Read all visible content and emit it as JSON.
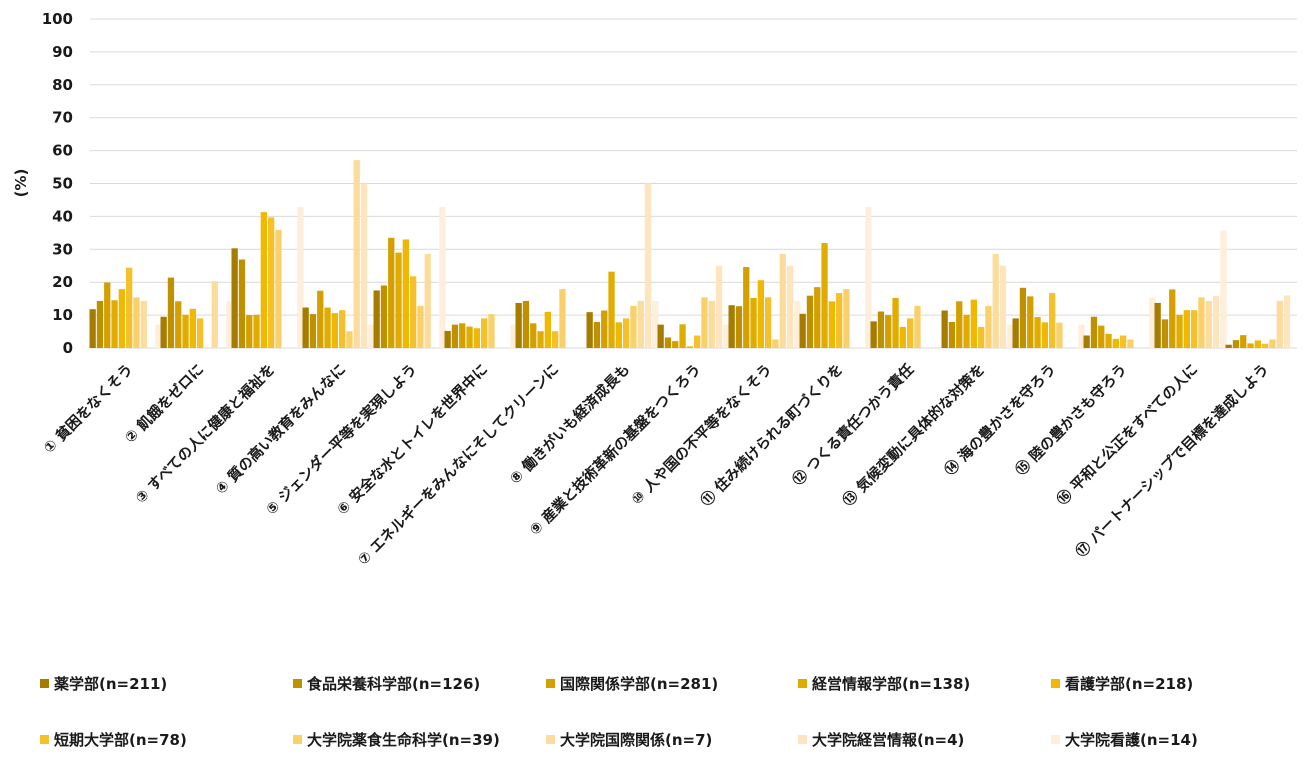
{
  "chart_data": {
    "type": "bar",
    "ylabel": "(%)",
    "ylim": [
      0,
      100
    ],
    "yticks": [
      0,
      10,
      20,
      30,
      40,
      50,
      60,
      70,
      80,
      90,
      100
    ],
    "grid": true,
    "legend_position": "bottom",
    "categories": [
      "① 貧困をなくそう",
      "② 飢餓をゼロに",
      "③ すべての人に健康と福祉を",
      "④ 質の高い教育をみんなに",
      "⑤ ジェンダー平等を実現しよう",
      "⑥ 安全な水とトイレを世界中に",
      "⑦ エネルギーをみんなにそしてクリーンに",
      "⑧ 働きがいも経済成長も",
      "⑨ 産業と技術革新の基盤をつくろう",
      "⑩ 人や国の不平等をなくそう",
      "⑪ 住み続けられる町づくりを",
      "⑫ つくる責任つかう責任",
      "⑬ 気候変動に具体的な対策を",
      "⑭ 海の豊かさを守ろう",
      "⑮ 陸の豊かさも守ろう",
      "⑯ 平和と公正をすべての人に",
      "⑰ パートナーシップで目標を達成しよう"
    ],
    "series": [
      {
        "name": "薬学部(n=211)",
        "color": "#A67C00",
        "values": [
          11.8,
          9.5,
          30.3,
          12.3,
          17.5,
          5.2,
          13.7,
          10.9,
          7.1,
          13.0,
          10.4,
          8.1,
          11.4,
          9.0,
          3.8,
          13.7,
          1.0
        ]
      },
      {
        "name": "食品栄養科学部(n=126)",
        "color": "#BF9000",
        "values": [
          14.3,
          21.4,
          26.9,
          10.3,
          19.0,
          7.1,
          14.3,
          7.9,
          3.2,
          12.7,
          15.9,
          11.1,
          7.9,
          18.3,
          9.5,
          8.7,
          2.4
        ]
      },
      {
        "name": "国際関係学部(n=281)",
        "color": "#D4A000",
        "values": [
          19.9,
          14.2,
          10.0,
          17.4,
          33.5,
          7.5,
          7.5,
          11.4,
          2.1,
          24.6,
          18.5,
          10.0,
          14.2,
          15.7,
          6.8,
          17.8,
          3.9
        ]
      },
      {
        "name": "経営情報学部(n=138)",
        "color": "#E0AC00",
        "values": [
          14.5,
          10.1,
          10.1,
          12.3,
          29.0,
          6.5,
          5.1,
          23.2,
          7.2,
          15.2,
          31.9,
          15.2,
          10.1,
          9.4,
          4.3,
          10.1,
          1.4
        ]
      },
      {
        "name": "看護学部(n=218)",
        "color": "#F0B800",
        "values": [
          17.9,
          11.9,
          41.3,
          10.6,
          33.0,
          6.0,
          11.0,
          7.8,
          0.5,
          20.6,
          14.2,
          6.4,
          14.7,
          7.8,
          2.8,
          11.5,
          2.3
        ]
      },
      {
        "name": "短期大学部(n=78)",
        "color": "#F6C02A",
        "values": [
          24.4,
          9.0,
          39.7,
          11.5,
          21.8,
          9.0,
          5.1,
          9.0,
          3.8,
          15.4,
          16.7,
          9.0,
          6.4,
          16.7,
          3.8,
          11.5,
          1.3
        ]
      },
      {
        "name": "大学院薬食生命科学(n=39)",
        "color": "#FAD06A",
        "values": [
          15.4,
          0,
          35.9,
          5.1,
          12.8,
          10.3,
          17.9,
          12.8,
          15.4,
          2.6,
          17.9,
          12.8,
          12.8,
          7.7,
          2.6,
          15.4,
          2.6
        ]
      },
      {
        "name": "大学院国際関係(n=7)",
        "color": "#FCDC9C",
        "values": [
          14.3,
          20.3,
          0,
          57.1,
          28.6,
          0,
          0,
          14.3,
          14.3,
          28.6,
          0,
          0,
          28.6,
          0,
          0,
          14.3,
          14.3
        ]
      },
      {
        "name": "大学院経営情報(n=4)",
        "color": "#FEE5BE",
        "values": [
          0,
          0,
          0,
          50.0,
          0,
          0,
          0,
          50.0,
          25.0,
          25.0,
          0,
          0,
          25.0,
          0,
          0,
          15.8,
          16.0
        ]
      },
      {
        "name": "大学院看護(n=14)",
        "color": "#FEEEDB",
        "values": [
          7.1,
          14.3,
          42.9,
          7.1,
          42.9,
          7.1,
          0,
          14.3,
          7.1,
          14.3,
          42.9,
          0,
          7.1,
          7.1,
          15.4,
          35.7,
          0
        ]
      }
    ]
  }
}
